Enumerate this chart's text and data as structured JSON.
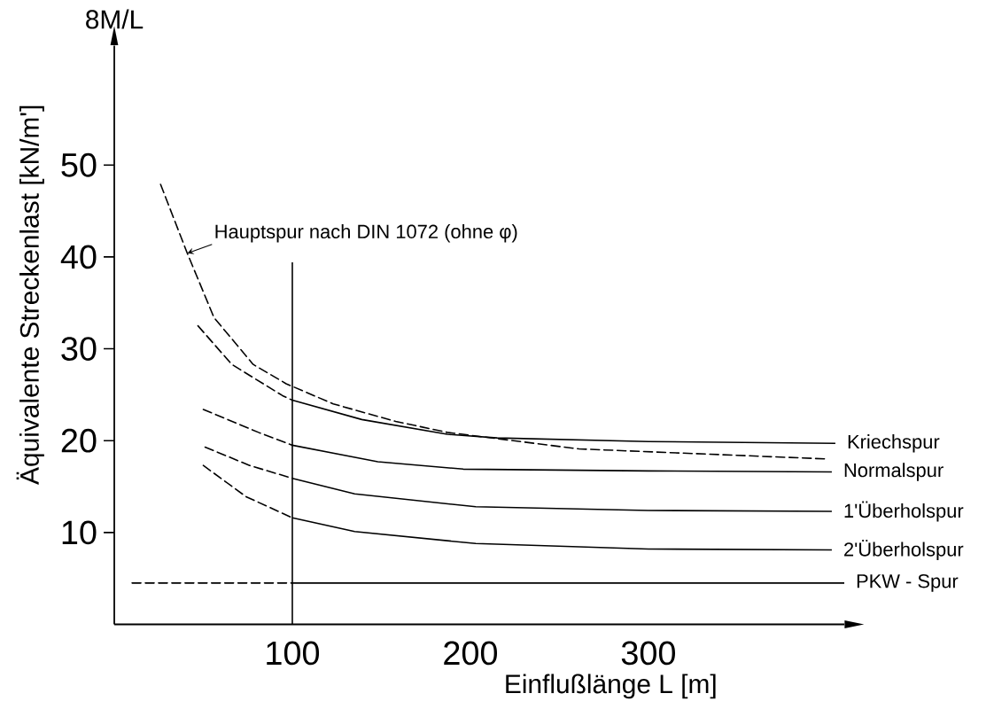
{
  "chart_data": {
    "type": "line",
    "xlabel": "Einflußlänge L  [m]",
    "ylabel": "Äquivalente Streckenlast [kN/m']",
    "annotations": [
      "8M/L"
    ],
    "xlim": [
      0,
      410
    ],
    "ylim": [
      0,
      63
    ],
    "xticks": [
      100,
      200,
      300
    ],
    "yticks": [
      10,
      20,
      30,
      40,
      50
    ],
    "series": [
      {
        "name": "Hauptspur nach DIN 1072 (ohne φ)",
        "color": "#000000",
        "line_style": "dashed",
        "x": [
          26,
          41,
          56,
          78,
          96.5,
          123,
          158,
          187,
          261,
          401
        ],
        "values": [
          47.9,
          40.4,
          33.4,
          28.3,
          26.2,
          24.0,
          22.1,
          20.9,
          19.1,
          18.0
        ]
      },
      {
        "color": "#000000",
        "line_style": "dashed",
        "x": [
          47,
          66,
          94.5,
          100
        ],
        "values": [
          32.5,
          28.3,
          24.9,
          24.4
        ]
      },
      {
        "name": "Kriechspur",
        "color": "#000000",
        "line_style": "solid",
        "x": [
          100,
          139,
          187,
          215,
          300,
          405
        ],
        "values": [
          24.4,
          22.3,
          20.7,
          20.3,
          19.9,
          19.7
        ]
      },
      {
        "color": "#000000",
        "line_style": "dashed",
        "x": [
          50,
          81,
          100
        ],
        "values": [
          23.4,
          20.9,
          19.5
        ]
      },
      {
        "name": "Normalspur",
        "color": "#000000",
        "line_style": "solid",
        "x": [
          100,
          148,
          196,
          300,
          403
        ],
        "values": [
          19.5,
          17.7,
          16.9,
          16.7,
          16.6
        ]
      },
      {
        "color": "#000000",
        "line_style": "dashed",
        "x": [
          51,
          76,
          100
        ],
        "values": [
          19.3,
          17.3,
          15.9
        ]
      },
      {
        "name": "1'Überholspur",
        "color": "#000000",
        "line_style": "solid",
        "x": [
          100,
          135,
          203,
          300,
          403
        ],
        "values": [
          15.9,
          14.2,
          12.8,
          12.4,
          12.3
        ]
      },
      {
        "color": "#000000",
        "line_style": "dashed",
        "x": [
          50,
          74,
          100
        ],
        "values": [
          17.3,
          13.9,
          11.6
        ]
      },
      {
        "name": "2'Überholspur",
        "color": "#000000",
        "line_style": "solid",
        "x": [
          100,
          135,
          203,
          300,
          403
        ],
        "values": [
          11.6,
          10.1,
          8.8,
          8.2,
          8.1
        ]
      },
      {
        "color": "#000000",
        "line_style": "dashed",
        "x": [
          10,
          100
        ],
        "values": [
          4.5,
          4.5
        ]
      },
      {
        "name": "PKW - Spur",
        "color": "#000000",
        "line_style": "solid",
        "x": [
          100,
          410
        ],
        "values": [
          4.5,
          4.5
        ]
      },
      {
        "color": "#000000",
        "line_style": "solid",
        "x": [
          100,
          100
        ],
        "values": [
          0,
          39.4
        ]
      }
    ]
  }
}
